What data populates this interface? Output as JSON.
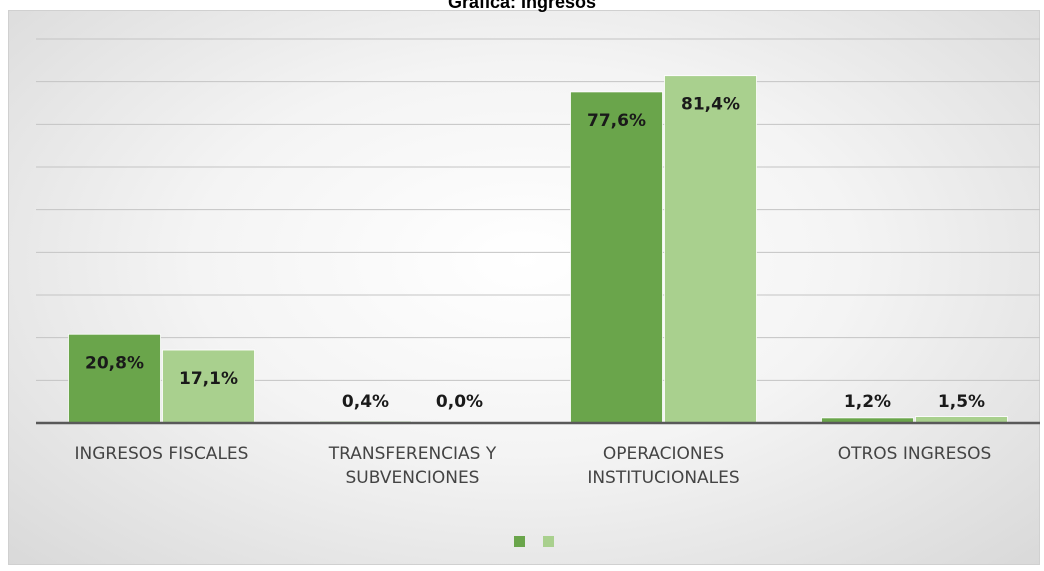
{
  "chart_data": {
    "type": "bar",
    "title": "Gráfica: Ingresos",
    "categories": [
      "INGRESOS FISCALES",
      "TRANSFERENCIAS Y SUBVENCIONES",
      "OPERACIONES INSTITUCIONALES",
      "OTROS INGRESOS"
    ],
    "series": [
      {
        "color": "#6aa54b",
        "values": [
          20.8,
          0.4,
          77.6,
          1.2
        ],
        "value_labels": [
          "20,8%",
          "0,4%",
          "77,6%",
          "1,2%"
        ]
      },
      {
        "color": "#a9d08e",
        "values": [
          17.1,
          0.0,
          81.4,
          1.5
        ],
        "value_labels": [
          "17,1%",
          "0,0%",
          "81,4%",
          "1,5%"
        ]
      }
    ],
    "ylim": [
      0,
      90
    ],
    "yticks": [
      0,
      10,
      20,
      30,
      40,
      50,
      60,
      70,
      80,
      90
    ],
    "grid": true,
    "legend": "bottom"
  }
}
